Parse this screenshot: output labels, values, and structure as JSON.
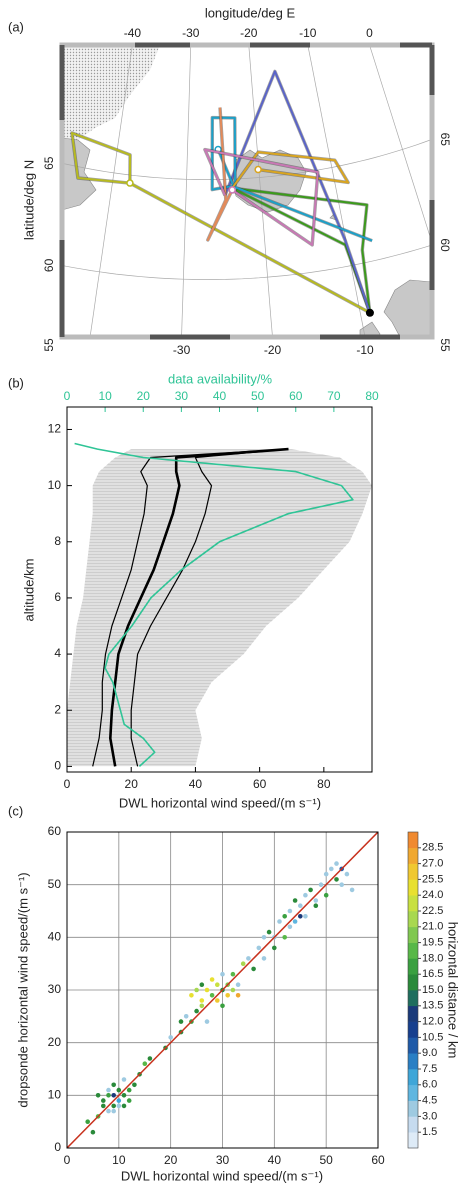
{
  "chart_data": [
    {
      "type": "map",
      "label": "(a)",
      "xlabel": "longitude/deg E",
      "ylabel": "latitude/deg N",
      "xticks": [
        -40,
        -30,
        -20,
        -10,
        0
      ],
      "xticks_bottom": [
        -30,
        -20,
        -10
      ],
      "yticks": [
        55,
        60,
        65
      ],
      "series": [
        {
          "color": "#b7ba1f",
          "lon": [
            -8.95,
            -37.65,
            -38.1,
            -46.8,
            -44.7,
            -37.65
          ],
          "lat": [
            57.5,
            64.6,
            66.0,
            66.58,
            64.44,
            64.6
          ]
        },
        {
          "color": "#3c9a1c",
          "lon": [
            -8.95,
            -8.3,
            -6.5,
            -23.8,
            -10.2,
            -8.95
          ],
          "lat": [
            57.5,
            60.65,
            62.8,
            64.55,
            61.07,
            57.5
          ]
        },
        {
          "color": "#5a64c8",
          "lon": [
            -24.8,
            -16.1,
            -10.1,
            -8.95
          ],
          "lat": [
            64.2,
            70.2,
            61.3,
            57.5
          ]
        },
        {
          "color": "#1ca0c8",
          "lon": [
            -6.9,
            -23.8,
            -26.5,
            -26.4,
            -23.0,
            -23.4,
            -25.6
          ],
          "lat": [
            61.0,
            64.65,
            64.5,
            68.1,
            68.05,
            64.45,
            66.5
          ]
        },
        {
          "color": "#d9a520",
          "lon": [
            -23.8,
            -19.9,
            -9.4,
            -8.25,
            -20.1
          ],
          "lat": [
            64.55,
            66.27,
            65.33,
            64.1,
            65.4
          ]
        },
        {
          "color": "#e28a5a",
          "lon": [
            -25.2,
            -24.7,
            -27.1,
            -23.8
          ],
          "lat": [
            68.6,
            63.97,
            61.98,
            64.46
          ]
        },
        {
          "color": "#c878b4",
          "lon": [
            -24.8,
            -27.5,
            -12.0,
            -14.2,
            -23.8
          ],
          "lat": [
            64.2,
            66.5,
            64.9,
            61.35,
            64.46
          ]
        }
      ],
      "marker": {
        "lon": -8.95,
        "lat": 57.5,
        "color": "#000000"
      }
    },
    {
      "type": "profile",
      "label": "(b)",
      "xlabel": "DWL horizontal wind speed/(m s⁻¹)",
      "x2label": "data availability/%",
      "ylabel": "altitude/km",
      "xlim": [
        0,
        95
      ],
      "xticks": [
        0,
        20,
        40,
        60,
        80
      ],
      "x2lim": [
        0,
        80
      ],
      "x2ticks": [
        0,
        10,
        20,
        30,
        40,
        50,
        60,
        70,
        80
      ],
      "x2color": "#2fc496",
      "ylim": [
        -0.2,
        12.8
      ],
      "yticks": [
        0,
        2,
        4,
        6,
        8,
        10,
        12
      ],
      "spread": {
        "color": "#c4c4c4",
        "y": [
          0,
          1,
          2,
          3,
          4,
          5,
          6,
          7,
          8,
          9,
          10,
          10.5,
          11,
          11.3
        ],
        "x_low": [
          0,
          0,
          0,
          1,
          2,
          3,
          5,
          6,
          7,
          8,
          8,
          10,
          15,
          20
        ],
        "x_high": [
          40,
          42,
          40,
          45,
          55,
          62,
          72,
          80,
          88,
          92,
          95,
          92,
          85,
          70
        ]
      },
      "series": [
        {
          "color": "#000000",
          "width": 1.2,
          "y": [
            0,
            1,
            2,
            3,
            4,
            5,
            6,
            7,
            8,
            9,
            10,
            10.5,
            11,
            11.3
          ],
          "x": [
            8,
            10,
            11,
            11,
            12,
            14,
            17,
            20,
            22,
            24,
            25,
            23,
            26,
            69
          ]
        },
        {
          "color": "#000000",
          "width": 2.6,
          "y": [
            0,
            1,
            2,
            3,
            4,
            5,
            6,
            7,
            8,
            9,
            10,
            10.5,
            11,
            11.3
          ],
          "x": [
            15,
            13.5,
            14,
            15,
            16,
            19,
            23,
            27,
            30,
            33,
            35,
            34,
            34,
            69
          ]
        },
        {
          "color": "#000000",
          "width": 1.2,
          "y": [
            0,
            1,
            2,
            3,
            4,
            5,
            6,
            7,
            8,
            9,
            10,
            10.5,
            11,
            11.3
          ],
          "x": [
            22,
            20,
            20,
            21,
            22,
            26,
            31,
            36,
            40,
            43,
            45,
            42,
            40,
            69
          ]
        },
        {
          "color": "#2fc496",
          "width": 1.6,
          "axis": "x2",
          "y": [
            0,
            0.5,
            1,
            1.5,
            2,
            3,
            3.5,
            4,
            5,
            6,
            7,
            8,
            9,
            9.5,
            10,
            10.5,
            11,
            11.3,
            11.5
          ],
          "x": [
            19,
            23,
            20,
            15,
            14,
            12,
            10,
            11,
            17,
            22,
            30,
            40,
            58,
            75,
            72,
            60,
            20,
            8,
            2
          ]
        }
      ]
    },
    {
      "type": "scatter",
      "label": "(c)",
      "xlabel": "DWL horizontal wind speed/(m s⁻¹)",
      "ylabel": "dropsonde horizontal wind speed/(m s⁻¹)",
      "clabel": "horizontal distance / km",
      "xlim": [
        0,
        60
      ],
      "xticks": [
        0,
        10,
        20,
        30,
        40,
        50,
        60
      ],
      "ylim": [
        0,
        60
      ],
      "yticks": [
        0,
        10,
        20,
        30,
        40,
        50,
        60
      ],
      "grid": true,
      "identity_line_color": "#c8321e",
      "clim": [
        0,
        30
      ],
      "cticks": [
        1.5,
        {
          "value": 3,
          "label": "3.0"
        },
        4.5,
        {
          "value": 6,
          "label": "6.0"
        },
        7.5,
        {
          "value": 9,
          "label": "9.0"
        },
        10.5,
        {
          "value": 12,
          "label": "12.0"
        },
        13.5,
        {
          "value": 15,
          "label": "15.0"
        },
        16.5,
        {
          "value": 18,
          "label": "18.0"
        },
        19.5,
        {
          "value": 21,
          "label": "21.0"
        },
        22.5,
        {
          "value": 24,
          "label": "24.0"
        },
        25.5,
        {
          "value": 27,
          "label": "27.0"
        },
        28.5
      ],
      "colormap": [
        "#deebf7",
        "#c6dbef",
        "#9ecae1",
        "#5fb6e0",
        "#3ea6d8",
        "#2a7fc4",
        "#1f5aa8",
        "#173f8e",
        "#1a3a7a",
        "#1f6e5e",
        "#2a8a3a",
        "#3aa040",
        "#58b848",
        "#80c850",
        "#a8d850",
        "#c8e040",
        "#e8e030",
        "#f0c830",
        "#f0a830",
        "#f08a30"
      ],
      "x": [
        7,
        8,
        9,
        10,
        8,
        9,
        10,
        11,
        12,
        7,
        6,
        5,
        4,
        9,
        11,
        13,
        14,
        15,
        16,
        12,
        6,
        8,
        10,
        11,
        9,
        19,
        20,
        22,
        23,
        24,
        25,
        26,
        27,
        28,
        29,
        30,
        31,
        32,
        33,
        34,
        25,
        24,
        26,
        28,
        30,
        32,
        27,
        29,
        31,
        22,
        35,
        36,
        33,
        26,
        30,
        37,
        38,
        39,
        40,
        41,
        42,
        43,
        44,
        45,
        46,
        47,
        48,
        49,
        50,
        51,
        52,
        53,
        54,
        50,
        46,
        42,
        44,
        48,
        40,
        38,
        52,
        53,
        55,
        45,
        43
      ],
      "y": [
        9,
        10,
        8,
        11,
        7,
        7,
        8,
        10,
        11,
        8,
        6,
        3,
        5,
        12,
        13,
        12,
        14,
        16,
        17,
        9,
        10,
        11,
        9,
        8,
        10,
        19,
        21,
        22,
        25,
        24,
        30,
        28,
        30,
        29,
        31,
        30,
        29,
        33,
        31,
        35,
        26,
        29,
        31,
        32,
        27,
        30,
        24,
        28,
        31,
        24,
        36,
        34,
        29,
        27,
        33,
        38,
        36,
        41,
        40,
        43,
        44,
        42,
        47,
        46,
        44,
        49,
        47,
        50,
        52,
        53,
        51,
        50,
        52,
        48,
        48,
        40,
        43,
        46,
        38,
        40,
        54,
        53,
        49,
        44,
        45
      ],
      "c": [
        16,
        17,
        15,
        16,
        4,
        3,
        4,
        16,
        17,
        15,
        18,
        16,
        17,
        16,
        3,
        15,
        16,
        18,
        15,
        17,
        16,
        3,
        6,
        16,
        12,
        15,
        4,
        16,
        3,
        17,
        22,
        24,
        25,
        19,
        23,
        16,
        26,
        18,
        4,
        21,
        16,
        24,
        15,
        25,
        17,
        22,
        3,
        26,
        20,
        16,
        4,
        16,
        27,
        21,
        3,
        4,
        3,
        16,
        4,
        3,
        17,
        4,
        16,
        3,
        4,
        16,
        3,
        4,
        3,
        4,
        16,
        3,
        4,
        17,
        3,
        18,
        5,
        15,
        16,
        3,
        3,
        9,
        4,
        12,
        4
      ]
    }
  ]
}
